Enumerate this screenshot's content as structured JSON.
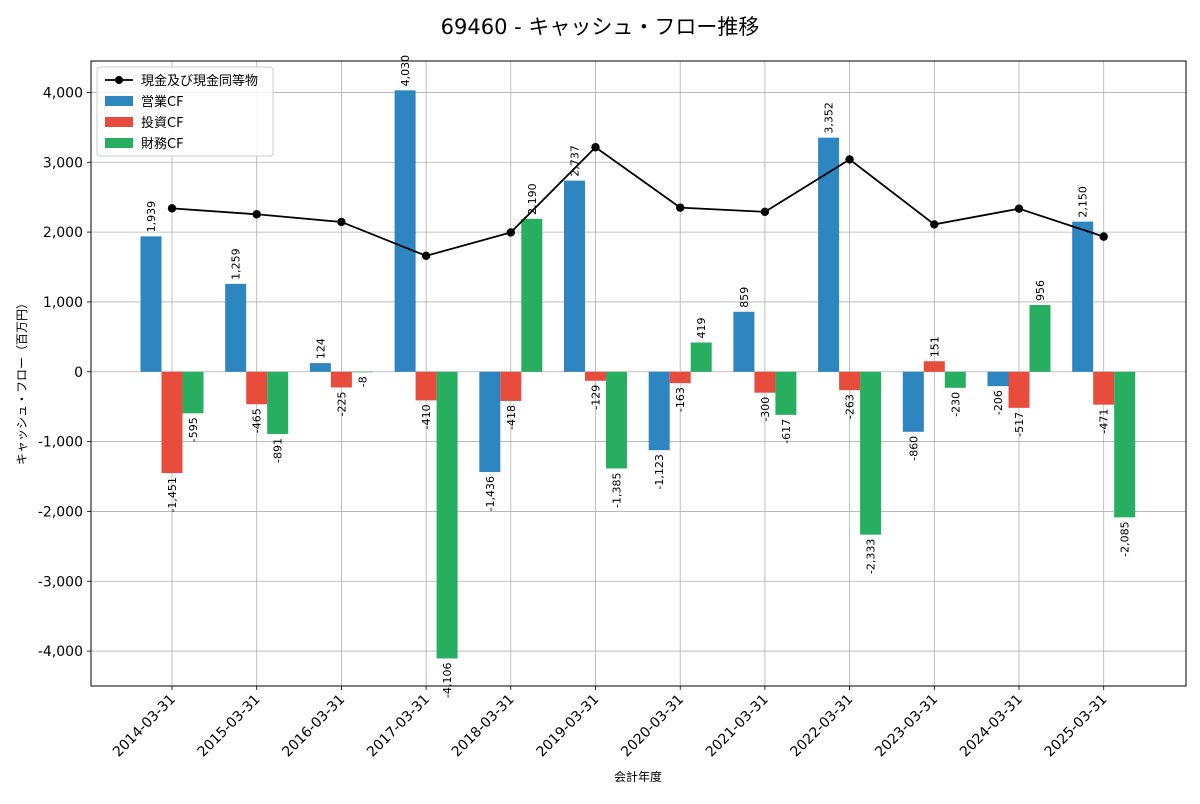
{
  "chart_data": {
    "type": "bar",
    "title": "69460 - キャッシュ・フロー推移",
    "xlabel": "会計年度",
    "ylabel": "キャッシュ・フロー（百万円）",
    "ylim": [
      -4500,
      4450
    ],
    "yticks": [
      -4000,
      -3000,
      -2000,
      -1000,
      0,
      1000,
      2000,
      3000,
      4000
    ],
    "ytick_labels": [
      "-4,000",
      "-3,000",
      "-2,000",
      "-1,000",
      "0",
      "1,000",
      "2,000",
      "3,000",
      "4,000"
    ],
    "grid": true,
    "legend_position": "top-left",
    "categories": [
      "2014-03-31",
      "2015-03-31",
      "2016-03-31",
      "2017-03-31",
      "2018-03-31",
      "2019-03-31",
      "2020-03-31",
      "2021-03-31",
      "2022-03-31",
      "2023-03-31",
      "2024-03-31",
      "2025-03-31"
    ],
    "series": [
      {
        "name": "営業CF",
        "type": "bar",
        "color": "#2e86c1",
        "values": [
          1939,
          1259,
          124,
          4030,
          -1436,
          2737,
          -1123,
          859,
          3352,
          -860,
          -206,
          2150
        ],
        "labels": [
          "1,939",
          "1,259",
          "124",
          "4,030",
          "-1,436",
          "2,737",
          "-1,123",
          "859",
          "3,352",
          "-860",
          "-206",
          "2,150"
        ]
      },
      {
        "name": "投資CF",
        "type": "bar",
        "color": "#e74c3c",
        "values": [
          -1451,
          -465,
          -225,
          -410,
          -418,
          -129,
          -163,
          -300,
          -263,
          151,
          -517,
          -471
        ],
        "labels": [
          "-1,451",
          "-465",
          "-225",
          "-410",
          "-418",
          "-129",
          "-163",
          "-300",
          "-263",
          "151",
          "-517",
          "-471"
        ]
      },
      {
        "name": "財務CF",
        "type": "bar",
        "color": "#27ae60",
        "values": [
          -595,
          -891,
          -8,
          -4106,
          2190,
          -1385,
          419,
          -617,
          -2333,
          -230,
          956,
          -2085
        ],
        "labels": [
          "-595",
          "-891",
          "-8",
          "-4,106",
          "2,190",
          "-1,385",
          "419",
          "-617",
          "-2,333",
          "-230",
          "956",
          "-2,085"
        ]
      },
      {
        "name": "現金及び現金同等物",
        "type": "line",
        "color": "#000000",
        "values": [
          2340,
          2255,
          2145,
          1660,
          1995,
          3215,
          2350,
          2290,
          3040,
          2110,
          2335,
          1935
        ]
      }
    ]
  }
}
